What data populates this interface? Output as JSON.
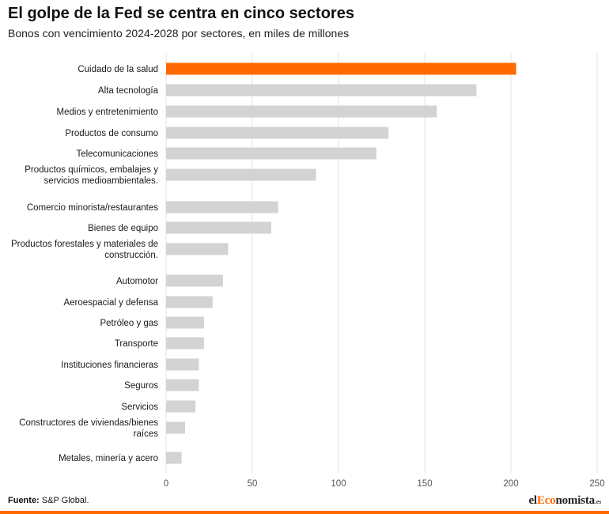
{
  "header": {
    "title": "El golpe de la Fed se centra en cinco sectores",
    "subtitle": "Bonos con vencimiento 2024-2028 por sectores, en miles de millones"
  },
  "footer": {
    "source_label": "Fuente:",
    "source_text": "S&P Global.",
    "logo_prefix": "el",
    "logo_accent": "Eco",
    "logo_suffix": "nomista",
    "logo_tld": ".es"
  },
  "colors": {
    "highlight": "#ff6a00",
    "bar": "#d3d3d3",
    "grid": "#e3e3e3",
    "text": "#1a1a1a",
    "axis_text": "#555555"
  },
  "chart_data": {
    "type": "bar",
    "orientation": "horizontal",
    "title": "El golpe de la Fed se centra en cinco sectores",
    "subtitle": "Bonos con vencimiento 2024-2028 por sectores, en miles de millones",
    "xlabel": "",
    "ylabel": "",
    "xlim": [
      0,
      250
    ],
    "xticks": [
      0,
      50,
      100,
      150,
      200,
      250
    ],
    "grid": "vertical",
    "legend": "none",
    "highlight_category": "Cuidado de la salud",
    "categories": [
      "Cuidado de la salud",
      "Alta tecnología",
      "Medios y entretenimiento",
      "Productos de consumo",
      "Telecomunicaciones",
      "Productos químicos, embalajes y servicios medioambientales.",
      "Comercio minorista/restaurantes",
      "Bienes de equipo",
      "Productos forestales y materiales de construcción.",
      "Automotor",
      "Aeroespacial y defensa",
      "Petróleo y gas",
      "Transporte",
      "Instituciones financieras",
      "Seguros",
      "Servicios",
      "Constructores de viviendas/bienes raíces",
      "Metales, minería y acero"
    ],
    "label_lines": [
      [
        "Cuidado de la salud"
      ],
      [
        "Alta tecnología"
      ],
      [
        "Medios y entretenimiento"
      ],
      [
        "Productos de consumo"
      ],
      [
        "Telecomunicaciones"
      ],
      [
        "Productos químicos, embalajes y",
        "servicios medioambientales."
      ],
      [
        "Comercio minorista/restaurantes"
      ],
      [
        "Bienes de equipo"
      ],
      [
        "Productos forestales y materiales de",
        "construcción."
      ],
      [
        "Automotor"
      ],
      [
        "Aeroespacial y defensa"
      ],
      [
        "Petróleo y gas"
      ],
      [
        "Transporte"
      ],
      [
        "Instituciones financieras"
      ],
      [
        "Seguros"
      ],
      [
        "Servicios"
      ],
      [
        "Constructores de viviendas/bienes",
        "raíces"
      ],
      [
        "Metales, minería y acero"
      ]
    ],
    "values": [
      203,
      180,
      157,
      129,
      122,
      87,
      65,
      61,
      36,
      33,
      27,
      22,
      22,
      19,
      19,
      17,
      11,
      9
    ]
  }
}
